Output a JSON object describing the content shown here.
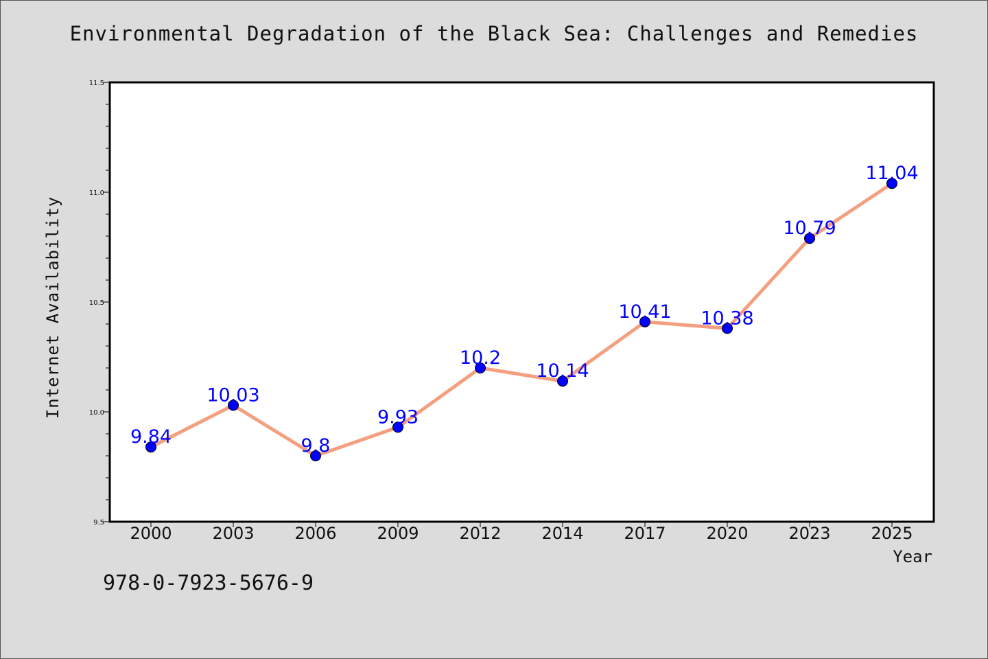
{
  "chart_data": {
    "type": "line",
    "title": "Environmental Degradation of the Black Sea: Challenges and Remedies",
    "xlabel": "Year",
    "ylabel": "Internet Availability",
    "categories": [
      "2000",
      "2003",
      "2006",
      "2009",
      "2012",
      "2014",
      "2017",
      "2020",
      "2023",
      "2025"
    ],
    "values": [
      9.84,
      10.03,
      9.8,
      9.93,
      10.2,
      10.14,
      10.41,
      10.38,
      10.79,
      11.04
    ],
    "data_labels": [
      "9.84",
      "10.03",
      "9.8",
      "9.93",
      "10.2",
      "10.14",
      "10.41",
      "10.38",
      "10.79",
      "11.04"
    ],
    "ylim": [
      9.5,
      11.5
    ],
    "yticks": [
      "9.5",
      "10.0",
      "10.5",
      "11.0",
      "11.5"
    ],
    "grid": false,
    "colors": {
      "line": "#f4a080",
      "marker": "#0000ff",
      "label": "#0000ff",
      "background": "#dcdcdc",
      "plot_area": "#ffffff"
    }
  },
  "footer_text": "978-0-7923-5676-9"
}
